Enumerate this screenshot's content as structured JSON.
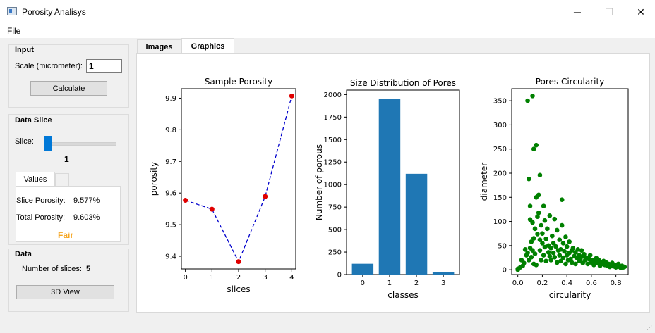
{
  "window": {
    "title": "Porosity Analisys",
    "minimize": "─",
    "maximize": "☐",
    "close": "✕"
  },
  "menu": {
    "file": "File"
  },
  "input_group": {
    "title": "Input",
    "scale_label": "Scale (micrometer):",
    "scale_value": "1",
    "calculate": "Calculate"
  },
  "data_slice": {
    "title": "Data Slice",
    "slice_label": "Slice:",
    "slice_value": "1",
    "slider_fraction": 0.0,
    "tabs": [
      "Values",
      ""
    ],
    "slice_porosity_label": "Slice Porosity:",
    "slice_porosity": "9.577%",
    "total_porosity_label": "Total Porosity:",
    "total_porosity": "9.603%",
    "rating": "Fair",
    "rating_color": "#f5a623"
  },
  "data_group": {
    "title": "Data",
    "num_slices_label": "Number of slices:",
    "num_slices": "5",
    "view3d": "3D View"
  },
  "main_tabs": {
    "images": "Images",
    "graphics": "Graphics"
  },
  "chart_data": [
    {
      "type": "line",
      "title": "Sample Porosity",
      "xlabel": "slices",
      "ylabel": "porosity",
      "x": [
        0,
        1,
        2,
        3,
        4
      ],
      "y": [
        9.577,
        9.549,
        9.383,
        9.589,
        9.907
      ],
      "xticks": [
        "0",
        "1",
        "2",
        "3",
        "4"
      ],
      "yticks": [
        "9.4",
        "9.5",
        "9.6",
        "9.7",
        "9.8",
        "9.9"
      ],
      "xlim": [
        -0.15,
        4.15
      ],
      "ylim": [
        9.36,
        9.93
      ],
      "line_color": "#0000cc",
      "marker_color": "#e00000"
    },
    {
      "type": "bar",
      "title": "Size Distribution of Pores",
      "xlabel": "classes",
      "ylabel": "Number of porous",
      "categories": [
        "0",
        "1",
        "2",
        "3"
      ],
      "values": [
        120,
        1950,
        1120,
        30
      ],
      "yticks": [
        "0",
        "250",
        "500",
        "750",
        "1000",
        "1250",
        "1500",
        "1750",
        "2000"
      ],
      "xlim": [
        -0.6,
        3.6
      ],
      "ylim": [
        0,
        2050
      ],
      "color": "#1f77b4"
    },
    {
      "type": "scatter",
      "title": "Pores Circularity",
      "xlabel": "circularity",
      "ylabel": "diameter",
      "xticks": [
        "0.0",
        "0.2",
        "0.4",
        "0.6",
        "0.8"
      ],
      "yticks": [
        "0",
        "50",
        "100",
        "150",
        "200",
        "250",
        "300",
        "350"
      ],
      "xlim": [
        -0.05,
        0.9
      ],
      "ylim": [
        -10,
        375
      ],
      "color": "#008000",
      "points": [
        [
          0.0,
          0
        ],
        [
          0.0,
          2
        ],
        [
          0.02,
          5
        ],
        [
          0.03,
          20
        ],
        [
          0.04,
          8
        ],
        [
          0.05,
          14
        ],
        [
          0.06,
          42
        ],
        [
          0.07,
          30
        ],
        [
          0.08,
          35
        ],
        [
          0.08,
          350
        ],
        [
          0.09,
          20
        ],
        [
          0.09,
          188
        ],
        [
          0.1,
          132
        ],
        [
          0.1,
          104
        ],
        [
          0.1,
          45
        ],
        [
          0.11,
          26
        ],
        [
          0.11,
          58
        ],
        [
          0.12,
          360
        ],
        [
          0.12,
          40
        ],
        [
          0.12,
          98
        ],
        [
          0.13,
          250
        ],
        [
          0.13,
          12
        ],
        [
          0.13,
          65
        ],
        [
          0.14,
          85
        ],
        [
          0.14,
          33
        ],
        [
          0.15,
          258
        ],
        [
          0.15,
          150
        ],
        [
          0.15,
          10
        ],
        [
          0.16,
          74
        ],
        [
          0.16,
          110
        ],
        [
          0.17,
          118
        ],
        [
          0.17,
          155
        ],
        [
          0.18,
          40
        ],
        [
          0.18,
          62
        ],
        [
          0.18,
          196
        ],
        [
          0.19,
          92
        ],
        [
          0.19,
          20
        ],
        [
          0.2,
          55
        ],
        [
          0.2,
          75
        ],
        [
          0.21,
          30
        ],
        [
          0.21,
          132
        ],
        [
          0.22,
          47
        ],
        [
          0.22,
          102
        ],
        [
          0.23,
          18
        ],
        [
          0.23,
          64
        ],
        [
          0.24,
          85
        ],
        [
          0.25,
          36
        ],
        [
          0.25,
          50
        ],
        [
          0.26,
          28
        ],
        [
          0.26,
          112
        ],
        [
          0.27,
          45
        ],
        [
          0.27,
          20
        ],
        [
          0.28,
          70
        ],
        [
          0.29,
          35
        ],
        [
          0.29,
          55
        ],
        [
          0.3,
          26
        ],
        [
          0.3,
          105
        ],
        [
          0.31,
          48
        ],
        [
          0.32,
          15
        ],
        [
          0.32,
          82
        ],
        [
          0.33,
          40
        ],
        [
          0.34,
          30
        ],
        [
          0.34,
          62
        ],
        [
          0.35,
          18
        ],
        [
          0.35,
          42
        ],
        [
          0.36,
          145
        ],
        [
          0.36,
          92
        ],
        [
          0.37,
          25
        ],
        [
          0.37,
          55
        ],
        [
          0.38,
          38
        ],
        [
          0.39,
          12
        ],
        [
          0.39,
          68
        ],
        [
          0.4,
          30
        ],
        [
          0.4,
          48
        ],
        [
          0.41,
          20
        ],
        [
          0.42,
          35
        ],
        [
          0.42,
          58
        ],
        [
          0.43,
          22
        ],
        [
          0.44,
          40
        ],
        [
          0.44,
          15
        ],
        [
          0.45,
          45
        ],
        [
          0.46,
          28
        ],
        [
          0.47,
          36
        ],
        [
          0.47,
          12
        ],
        [
          0.48,
          25
        ],
        [
          0.49,
          42
        ],
        [
          0.5,
          18
        ],
        [
          0.5,
          30
        ],
        [
          0.51,
          22
        ],
        [
          0.52,
          40
        ],
        [
          0.53,
          14
        ],
        [
          0.53,
          28
        ],
        [
          0.54,
          32
        ],
        [
          0.55,
          20
        ],
        [
          0.56,
          25
        ],
        [
          0.57,
          12
        ],
        [
          0.58,
          22
        ],
        [
          0.59,
          30
        ],
        [
          0.6,
          15
        ],
        [
          0.61,
          20
        ],
        [
          0.62,
          10
        ],
        [
          0.63,
          18
        ],
        [
          0.64,
          24
        ],
        [
          0.65,
          14
        ],
        [
          0.66,
          20
        ],
        [
          0.67,
          8
        ],
        [
          0.68,
          16
        ],
        [
          0.69,
          12
        ],
        [
          0.7,
          18
        ],
        [
          0.71,
          10
        ],
        [
          0.72,
          15
        ],
        [
          0.73,
          8
        ],
        [
          0.74,
          12
        ],
        [
          0.75,
          6
        ],
        [
          0.76,
          10
        ],
        [
          0.77,
          14
        ],
        [
          0.78,
          7
        ],
        [
          0.79,
          10
        ],
        [
          0.8,
          5
        ],
        [
          0.81,
          8
        ],
        [
          0.82,
          12
        ],
        [
          0.83,
          6
        ],
        [
          0.84,
          4
        ],
        [
          0.85,
          8
        ],
        [
          0.86,
          5
        ],
        [
          0.87,
          6
        ]
      ]
    }
  ]
}
